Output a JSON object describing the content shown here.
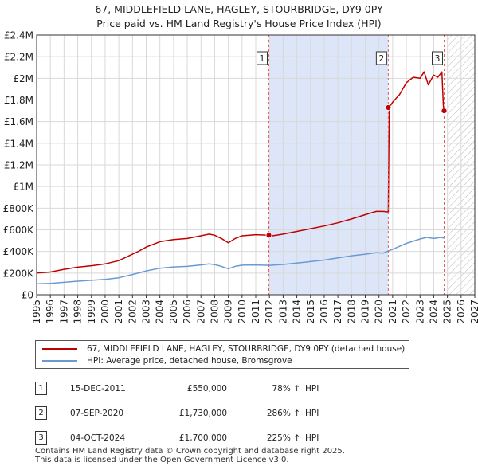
{
  "title_line1": "67, MIDDLEFIELD LANE, HAGLEY, STOURBRIDGE, DY9 0PY",
  "title_line2": "Price paid vs. HM Land Registry's House Price Index (HPI)",
  "colors": {
    "property": "#c00000",
    "hpi": "#6a9ad4",
    "highlight": "#dde6f8",
    "sale_marker": "#e06060"
  },
  "chart_data": {
    "type": "line",
    "xlim": [
      1995,
      2027
    ],
    "ylim": [
      0,
      2400000
    ],
    "y_ticks": [
      0,
      200000,
      400000,
      600000,
      800000,
      1000000,
      1200000,
      1400000,
      1600000,
      1800000,
      2000000,
      2200000,
      2400000
    ],
    "y_tick_labels": [
      "£0",
      "£200K",
      "£400K",
      "£600K",
      "£800K",
      "£1M",
      "£1.2M",
      "£1.4M",
      "£1.6M",
      "£1.8M",
      "£2M",
      "£2.2M",
      "£2.4M"
    ],
    "x_ticks": [
      "1995",
      "1996",
      "1997",
      "1998",
      "1999",
      "2000",
      "2001",
      "2002",
      "2003",
      "2004",
      "2005",
      "2006",
      "2007",
      "2008",
      "2009",
      "2010",
      "2011",
      "2012",
      "2013",
      "2014",
      "2015",
      "2016",
      "2017",
      "2018",
      "2019",
      "2020",
      "2021",
      "2022",
      "2023",
      "2024",
      "2025",
      "2026",
      "2027"
    ],
    "highlight_range": [
      2011.96,
      2020.68
    ],
    "future_from": 2025.0,
    "sales": [
      {
        "label": "1",
        "date": 2011.96,
        "price": 550000
      },
      {
        "label": "2",
        "date": 2020.68,
        "price": 1730000
      },
      {
        "label": "3",
        "date": 2024.76,
        "price": 1700000
      }
    ],
    "series": [
      {
        "name": "67, MIDDLEFIELD LANE, HAGLEY, STOURBRIDGE, DY9 0PY (detached house)",
        "x": [
          1995,
          1996,
          1997,
          1998,
          1999,
          2000,
          2001,
          2002,
          2002.5,
          2003,
          2004,
          2005,
          2006,
          2007,
          2007.6,
          2008,
          2008.5,
          2009,
          2009.5,
          2010,
          2011,
          2011.96,
          2012,
          2013,
          2014,
          2015,
          2016,
          2017,
          2018,
          2019,
          2019.8,
          2020.3,
          2020.68,
          2020.75,
          2021,
          2021.5,
          2022,
          2022.5,
          2023,
          2023.3,
          2023.6,
          2024,
          2024.3,
          2024.6,
          2024.7,
          2024.76,
          2024.85
        ],
        "values": [
          200000,
          210000,
          235000,
          255000,
          268000,
          285000,
          315000,
          375000,
          405000,
          440000,
          490000,
          510000,
          520000,
          545000,
          560000,
          550000,
          520000,
          480000,
          520000,
          545000,
          555000,
          550000,
          540000,
          560000,
          585000,
          610000,
          635000,
          665000,
          700000,
          740000,
          770000,
          770000,
          765000,
          1730000,
          1780000,
          1850000,
          1960000,
          2010000,
          2000000,
          2060000,
          1940000,
          2030000,
          2010000,
          2060000,
          1750000,
          1700000,
          1690000
        ]
      },
      {
        "name": "HPI: Average price, detached house, Bromsgrove",
        "x": [
          1995,
          1996,
          1997,
          1998,
          1999,
          2000,
          2001,
          2002,
          2003,
          2004,
          2005,
          2006,
          2007,
          2007.6,
          2008,
          2008.5,
          2009,
          2009.5,
          2010,
          2011,
          2012,
          2013,
          2014,
          2015,
          2016,
          2017,
          2018,
          2019,
          2019.8,
          2020.3,
          2021,
          2022,
          2023,
          2023.5,
          2024,
          2024.5,
          2024.85
        ],
        "values": [
          100000,
          105000,
          115000,
          125000,
          133000,
          142000,
          157000,
          187000,
          220000,
          245000,
          257000,
          262000,
          275000,
          285000,
          278000,
          262000,
          240000,
          262000,
          273000,
          275000,
          272000,
          280000,
          292000,
          306000,
          320000,
          340000,
          360000,
          375000,
          388000,
          385000,
          420000,
          475000,
          515000,
          530000,
          520000,
          530000,
          522000
        ]
      }
    ]
  },
  "legend": {
    "property_label": "67, MIDDLEFIELD LANE, HAGLEY, STOURBRIDGE, DY9 0PY (detached house)",
    "hpi_label": "HPI: Average price, detached house, Bromsgrove"
  },
  "sales_table": [
    {
      "num": "1",
      "date": "15-DEC-2011",
      "price": "£550,000",
      "hpi_change": "78%",
      "arrow": "↑",
      "hpi": "HPI"
    },
    {
      "num": "2",
      "date": "07-SEP-2020",
      "price": "£1,730,000",
      "hpi_change": "286%",
      "arrow": "↑",
      "hpi": "HPI"
    },
    {
      "num": "3",
      "date": "04-OCT-2024",
      "price": "£1,700,000",
      "hpi_change": "225%",
      "arrow": "↑",
      "hpi": "HPI"
    }
  ],
  "footer_line1": "Contains HM Land Registry data © Crown copyright and database right 2025.",
  "footer_line2": "This data is licensed under the Open Government Licence v3.0."
}
